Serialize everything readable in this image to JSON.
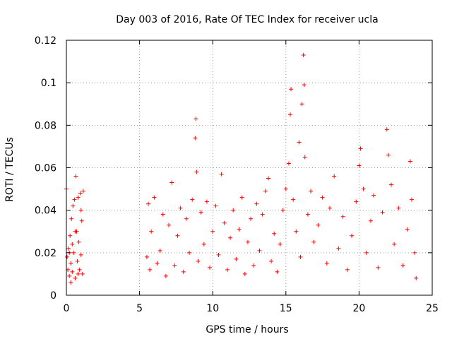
{
  "chart_data": {
    "type": "scatter",
    "title": "Day 003 of 2016, Rate Of TEC Index for receiver ucla",
    "xlabel": "GPS time / hours",
    "ylabel": "ROTI / TECUs",
    "xlim": [
      0,
      25
    ],
    "ylim": [
      0,
      0.12
    ],
    "xticks": [
      0,
      5,
      10,
      15,
      20,
      25
    ],
    "xtick_labels": [
      "0",
      "5",
      "10",
      "15",
      "20",
      "25"
    ],
    "yticks": [
      0,
      0.02,
      0.04,
      0.06,
      0.08,
      0.1,
      0.12
    ],
    "ytick_labels": [
      "0",
      "0.02",
      "0.04",
      "0.06",
      "0.08",
      "0.1",
      "0.12"
    ],
    "grid": true,
    "marker": "+",
    "color": "#ff0000",
    "series": [
      {
        "points": [
          [
            0.0,
            0.05
          ],
          [
            0.05,
            0.018
          ],
          [
            0.1,
            0.012
          ],
          [
            0.15,
            0.022
          ],
          [
            0.2,
            0.009
          ],
          [
            0.25,
            0.028
          ],
          [
            0.3,
            0.015
          ],
          [
            0.35,
            0.036
          ],
          [
            0.4,
            0.011
          ],
          [
            0.45,
            0.042
          ],
          [
            0.5,
            0.02
          ],
          [
            0.55,
            0.045
          ],
          [
            0.6,
            0.008
          ],
          [
            0.65,
            0.056
          ],
          [
            0.7,
            0.03
          ],
          [
            0.75,
            0.016
          ],
          [
            0.8,
            0.046
          ],
          [
            0.85,
            0.025
          ],
          [
            0.9,
            0.012
          ],
          [
            0.95,
            0.048
          ],
          [
            1.0,
            0.019
          ],
          [
            1.05,
            0.035
          ],
          [
            1.1,
            0.01
          ],
          [
            1.15,
            0.049
          ],
          [
            0.2,
            0.02
          ],
          [
            0.4,
            0.024
          ],
          [
            0.6,
            0.03
          ],
          [
            0.8,
            0.01
          ],
          [
            1.0,
            0.04
          ],
          [
            0.3,
            0.006
          ],
          [
            5.5,
            0.018
          ],
          [
            5.6,
            0.043
          ],
          [
            5.7,
            0.012
          ],
          [
            5.8,
            0.03
          ],
          [
            6.0,
            0.046
          ],
          [
            6.2,
            0.015
          ],
          [
            6.4,
            0.021
          ],
          [
            6.6,
            0.038
          ],
          [
            6.8,
            0.009
          ],
          [
            7.0,
            0.033
          ],
          [
            7.2,
            0.053
          ],
          [
            7.4,
            0.014
          ],
          [
            7.6,
            0.028
          ],
          [
            7.8,
            0.041
          ],
          [
            8.0,
            0.011
          ],
          [
            8.2,
            0.036
          ],
          [
            8.4,
            0.02
          ],
          [
            8.6,
            0.045
          ],
          [
            8.8,
            0.074
          ],
          [
            8.85,
            0.083
          ],
          [
            8.9,
            0.058
          ],
          [
            9.0,
            0.016
          ],
          [
            9.2,
            0.039
          ],
          [
            9.4,
            0.024
          ],
          [
            9.6,
            0.044
          ],
          [
            9.8,
            0.013
          ],
          [
            10.0,
            0.03
          ],
          [
            10.2,
            0.042
          ],
          [
            10.4,
            0.019
          ],
          [
            10.6,
            0.057
          ],
          [
            10.8,
            0.034
          ],
          [
            11.0,
            0.012
          ],
          [
            11.2,
            0.027
          ],
          [
            11.4,
            0.04
          ],
          [
            11.6,
            0.017
          ],
          [
            11.8,
            0.031
          ],
          [
            12.0,
            0.046
          ],
          [
            12.2,
            0.01
          ],
          [
            12.4,
            0.025
          ],
          [
            12.6,
            0.036
          ],
          [
            12.8,
            0.014
          ],
          [
            13.0,
            0.043
          ],
          [
            13.2,
            0.021
          ],
          [
            13.4,
            0.038
          ],
          [
            13.6,
            0.049
          ],
          [
            13.8,
            0.055
          ],
          [
            14.0,
            0.016
          ],
          [
            14.2,
            0.029
          ],
          [
            14.4,
            0.011
          ],
          [
            14.6,
            0.024
          ],
          [
            14.8,
            0.04
          ],
          [
            15.0,
            0.05
          ],
          [
            15.2,
            0.062
          ],
          [
            15.3,
            0.085
          ],
          [
            15.35,
            0.097
          ],
          [
            15.5,
            0.045
          ],
          [
            15.7,
            0.03
          ],
          [
            15.9,
            0.072
          ],
          [
            16.0,
            0.018
          ],
          [
            16.1,
            0.09
          ],
          [
            16.2,
            0.113
          ],
          [
            16.25,
            0.099
          ],
          [
            16.3,
            0.065
          ],
          [
            16.5,
            0.038
          ],
          [
            16.7,
            0.049
          ],
          [
            16.9,
            0.025
          ],
          [
            17.2,
            0.033
          ],
          [
            17.5,
            0.046
          ],
          [
            17.8,
            0.015
          ],
          [
            18.0,
            0.041
          ],
          [
            18.3,
            0.056
          ],
          [
            18.6,
            0.022
          ],
          [
            18.9,
            0.037
          ],
          [
            19.2,
            0.012
          ],
          [
            19.5,
            0.028
          ],
          [
            19.8,
            0.044
          ],
          [
            20.0,
            0.061
          ],
          [
            20.1,
            0.069
          ],
          [
            20.3,
            0.05
          ],
          [
            20.5,
            0.02
          ],
          [
            20.8,
            0.035
          ],
          [
            21.0,
            0.047
          ],
          [
            21.3,
            0.013
          ],
          [
            21.6,
            0.039
          ],
          [
            21.9,
            0.078
          ],
          [
            22.0,
            0.066
          ],
          [
            22.2,
            0.052
          ],
          [
            22.4,
            0.024
          ],
          [
            22.7,
            0.041
          ],
          [
            23.0,
            0.014
          ],
          [
            23.3,
            0.031
          ],
          [
            23.5,
            0.063
          ],
          [
            23.6,
            0.045
          ],
          [
            23.8,
            0.02
          ],
          [
            23.9,
            0.008
          ]
        ]
      }
    ]
  }
}
